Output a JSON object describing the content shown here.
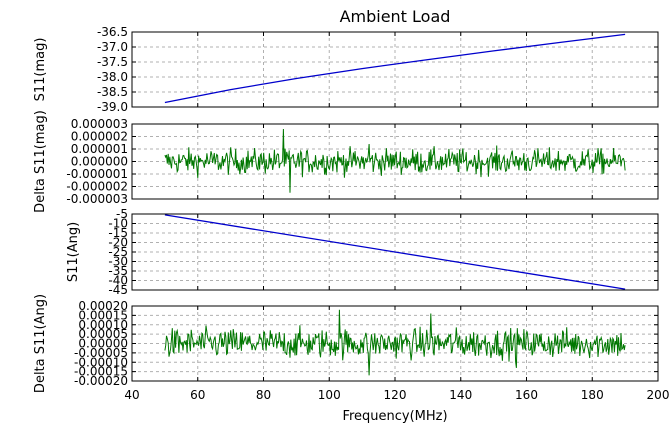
{
  "chart_data": {
    "type": "line",
    "title": "Ambient Load",
    "xlabel": "Frequency(MHz)",
    "xlim": [
      40,
      200
    ],
    "xticks": [
      40,
      60,
      80,
      100,
      120,
      140,
      160,
      180,
      200
    ],
    "x_range": [
      50,
      190
    ],
    "panels": [
      {
        "id": "s11-mag",
        "ylabel": "S11(mag)",
        "ylim": [
          -39.0,
          -36.5
        ],
        "yticks": [
          "-36.5",
          "-37.0",
          "-37.5",
          "-38.0",
          "-38.5",
          "-39.0"
        ],
        "grid": true,
        "series": [
          {
            "kind": "line",
            "color": "#0000cc",
            "x": [
              50,
              70,
              90,
              110,
              130,
              150,
              170,
              190
            ],
            "y": [
              -38.85,
              -38.42,
              -38.05,
              -37.72,
              -37.42,
              -37.13,
              -36.85,
              -36.58
            ]
          }
        ]
      },
      {
        "id": "delta-s11-mag",
        "ylabel": "Delta S11(mag)",
        "ylim": [
          -3e-06,
          3e-06
        ],
        "yticks": [
          "0.000003",
          "0.000002",
          "0.000001",
          "0.000000",
          "-0.000001",
          "-0.000002",
          "-0.000003"
        ],
        "grid": true,
        "series": [
          {
            "kind": "noise",
            "color": "#007700",
            "amplitude": 9e-07,
            "spikes": [
              [
                86,
                2.6e-06
              ],
              [
                88,
                -2.5e-06
              ],
              [
                112,
                1.4e-06
              ]
            ]
          }
        ]
      },
      {
        "id": "s11-ang",
        "ylabel": "S11(Ang)",
        "ylim": [
          -45,
          -5
        ],
        "yticks": [
          "-5",
          "-10",
          "-15",
          "-20",
          "-25",
          "-30",
          "-35",
          "-40",
          "-45"
        ],
        "grid": true,
        "series": [
          {
            "kind": "line",
            "color": "#0000cc",
            "x": [
              50,
              190
            ],
            "y": [
              -5.5,
              -44.5
            ]
          }
        ]
      },
      {
        "id": "delta-s11-ang",
        "ylabel": "Delta S11(Ang)",
        "ylim": [
          -0.0002,
          0.0002
        ],
        "yticks": [
          "0.00020",
          "0.00015",
          "0.00010",
          "0.00005",
          "0.00000",
          "-0.00005",
          "-0.00010",
          "-0.00015",
          "-0.00020"
        ],
        "grid": true,
        "series": [
          {
            "kind": "noise",
            "color": "#007700",
            "amplitude": 7e-05,
            "spikes": [
              [
                103,
                0.00018
              ],
              [
                112,
                -0.00017
              ],
              [
                131,
                0.00016
              ],
              [
                157,
                -0.00013
              ]
            ]
          }
        ]
      }
    ]
  }
}
